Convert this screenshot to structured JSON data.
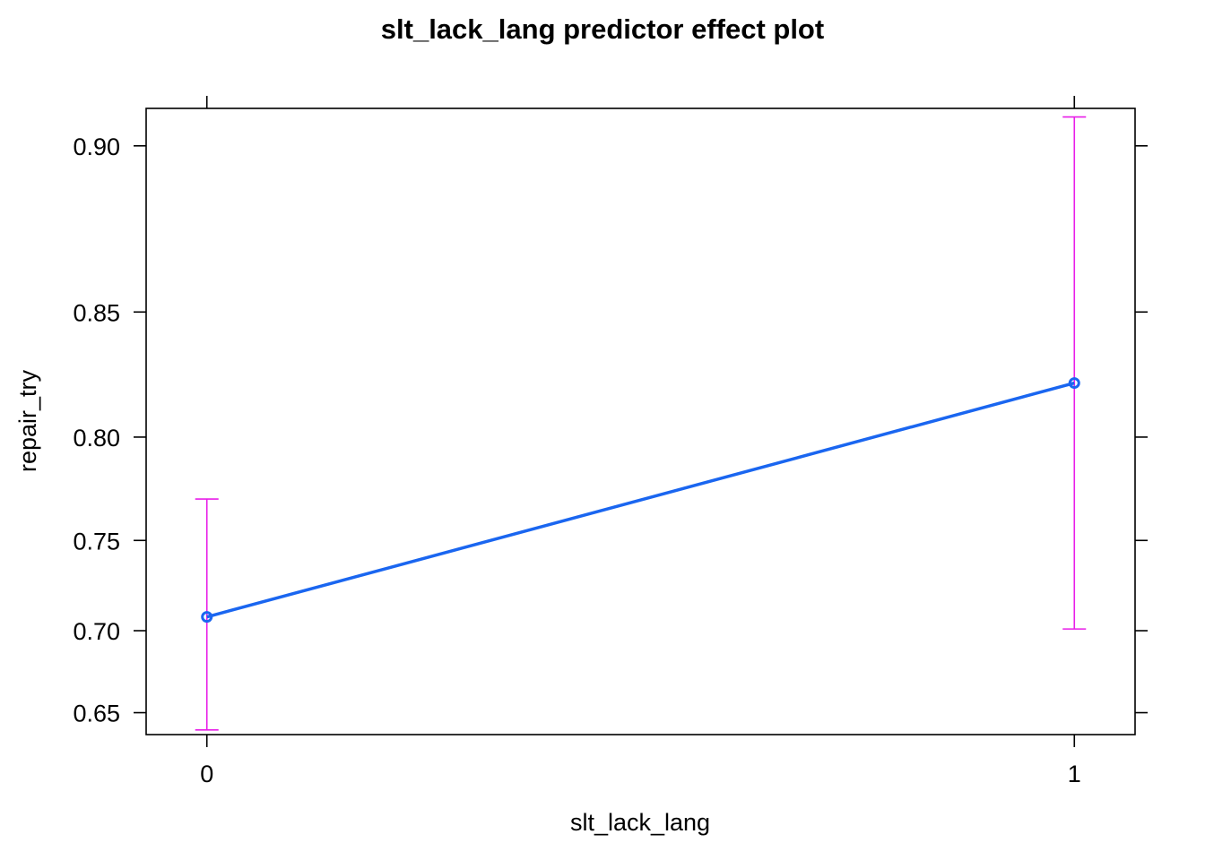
{
  "chart_data": {
    "type": "line",
    "title": "slt_lack_lang predictor effect plot",
    "xlabel": "slt_lack_lang",
    "ylabel": "repair_try",
    "x_ticks": [
      "0",
      "1"
    ],
    "x": [
      0,
      1
    ],
    "xlim": [
      -0.07,
      1.07
    ],
    "y_ticks": [
      "0.65",
      "0.70",
      "0.75",
      "0.80",
      "0.85",
      "0.90"
    ],
    "y_tick_values": [
      0.65,
      0.7,
      0.75,
      0.8,
      0.85,
      0.9
    ],
    "ylim": [
      0.636,
      0.909
    ],
    "y_scale": "logit",
    "grid": false,
    "series": [
      {
        "values": [
          0.708,
          0.823
        ],
        "lower": [
          0.639,
          0.701
        ],
        "upper": [
          0.771,
          0.907
        ]
      }
    ],
    "colors": {
      "line": "#1a66f0",
      "error_bars": "#e81ee8",
      "axes": "#000000"
    }
  }
}
